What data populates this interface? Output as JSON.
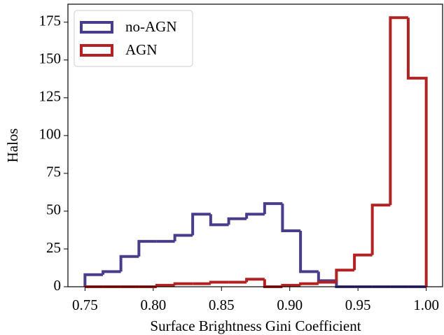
{
  "chart_data": {
    "type": "histogram",
    "xlabel": "Surface Brightness Gini Coefficient",
    "ylabel": "Halos",
    "bins": [
      0.75,
      0.7632,
      0.7763,
      0.7895,
      0.8026,
      0.8158,
      0.8289,
      0.8421,
      0.8553,
      0.8684,
      0.8816,
      0.8947,
      0.9079,
      0.9211,
      0.9342,
      0.9474,
      0.9605,
      0.9737,
      0.9868,
      1.0
    ],
    "series": [
      {
        "name": "no-AGN",
        "color": "#483d8b",
        "values": [
          8,
          10,
          20,
          30,
          30,
          34,
          48,
          41,
          45,
          48,
          55,
          37,
          10,
          4,
          0,
          0,
          0,
          0,
          0
        ]
      },
      {
        "name": "AGN",
        "color": "#b22222",
        "values": [
          0,
          0,
          0,
          0,
          1,
          2,
          2,
          3,
          3,
          5,
          0,
          1,
          2,
          3,
          11,
          21,
          54,
          178,
          138
        ]
      }
    ],
    "xlim": [
      0.7375,
      1.0125
    ],
    "ylim": [
      0,
      186.9
    ],
    "xticks": [
      0.75,
      {
        "value": 0.8,
        "label": "0.80"
      },
      0.85,
      {
        "value": 0.9,
        "label": "0.90"
      },
      0.95,
      {
        "value": 1.0,
        "label": "1.00"
      }
    ],
    "yticks": [
      0,
      25,
      50,
      75,
      100,
      125,
      150,
      175
    ],
    "legend": "upper left"
  }
}
